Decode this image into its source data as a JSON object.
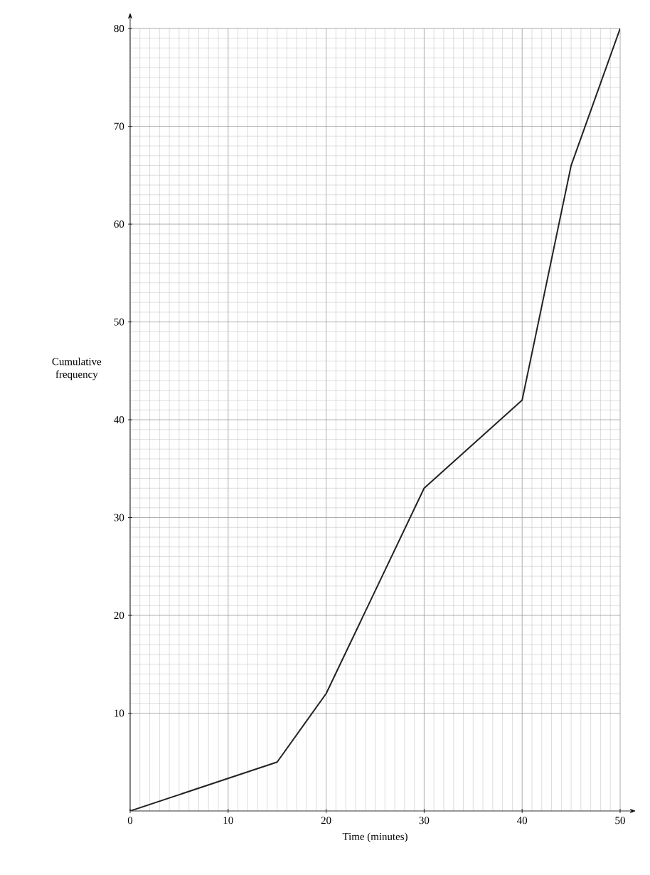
{
  "chart_data": {
    "type": "line",
    "xlabel": "Time (minutes)",
    "ylabel": "Cumulative frequency",
    "x": [
      0,
      15,
      20,
      30,
      40,
      45,
      50
    ],
    "series": [
      {
        "color": "#222222",
        "values": [
          0,
          5,
          12,
          33,
          42,
          66,
          80
        ]
      }
    ],
    "xlim": [
      0,
      50
    ],
    "ylim": [
      0,
      80
    ],
    "xticks": [
      0,
      10,
      20,
      30,
      40,
      50
    ],
    "yticks": [
      10,
      20,
      30,
      40,
      50,
      60,
      70,
      80
    ],
    "grid": true,
    "marker": "none",
    "line_style": "solid"
  }
}
